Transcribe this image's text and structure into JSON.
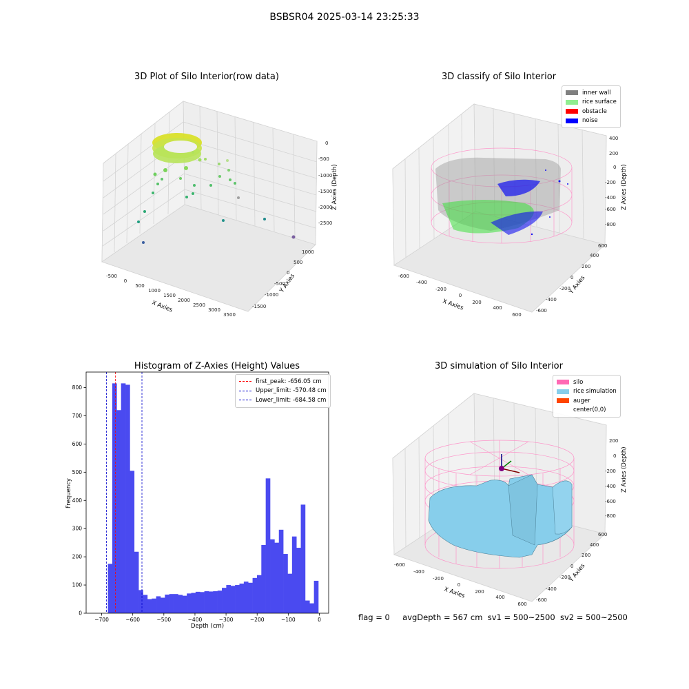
{
  "figure": {
    "suptitle": "BSBSR04 2025-03-14 23:25:33"
  },
  "footer": {
    "flag": "flag = 0",
    "avg_depth": "avgDepth = 567 cm",
    "sv1": "sv1 = 500~2500",
    "sv2": "sv2 = 500~2500"
  },
  "colors": {
    "inner_wall": "#808080",
    "rice_surface": "#90ee90",
    "obstacle": "#ff0000",
    "noise": "#0000ff",
    "silo": "#ff69b4",
    "rice_simulation": "#87ceeb",
    "auger": "#ff4500",
    "hist_bar": "#4a4af0",
    "first_peak": "#ff0000",
    "limit": "#0000cc"
  },
  "chart_data": [
    {
      "type": "scatter3d",
      "title": "3D Plot of Silo Interior(row data)",
      "xlabel": "X Axies",
      "ylabel": "Y Axies",
      "zlabel": "Z Axies (Depth)",
      "xticks": [
        "-500",
        "0",
        "500",
        "1000",
        "1500",
        "2000",
        "2500",
        "3000",
        "3500"
      ],
      "yticks": [
        "-1500",
        "-1000",
        "-500",
        "0",
        "500",
        "1000"
      ],
      "zticks": [
        "-2500",
        "-2000",
        "-1500",
        "-1000",
        "-500",
        "0"
      ]
    },
    {
      "type": "scatter3d",
      "title": "3D classify of Silo Interior",
      "xlabel": "X Axies",
      "ylabel": "Y Axies",
      "zlabel": "Z Axies (Depth)",
      "xticks": [
        "-600",
        "-400",
        "-200",
        "0",
        "200",
        "400",
        "600"
      ],
      "yticks": [
        "-600",
        "-400",
        "-200",
        "0",
        "200",
        "400",
        "600"
      ],
      "zticks": [
        "-800",
        "-600",
        "-400",
        "-200",
        "0",
        "200",
        "400"
      ],
      "legend": [
        "inner wall",
        "rice surface",
        "obstacle",
        "noise"
      ]
    },
    {
      "type": "bar",
      "title": "Histogram of Z-Axies (Height) Values",
      "xlabel": "Depth (cm)",
      "ylabel": "Frequency",
      "xlim": [
        -750,
        30
      ],
      "ylim": [
        0,
        855
      ],
      "xticks": [
        -700,
        -600,
        -500,
        -400,
        -300,
        -200,
        -100,
        0
      ],
      "yticks": [
        0,
        100,
        200,
        300,
        400,
        500,
        600,
        700,
        800
      ],
      "bin_start": -680,
      "bin_width": 14.1,
      "values": [
        175,
        815,
        720,
        815,
        810,
        505,
        218,
        82,
        65,
        50,
        52,
        60,
        55,
        66,
        68,
        68,
        65,
        62,
        70,
        72,
        76,
        75,
        78,
        77,
        78,
        80,
        90,
        100,
        97,
        100,
        105,
        112,
        108,
        125,
        135,
        242,
        478,
        262,
        250,
        296,
        210,
        140,
        272,
        232,
        385,
        45,
        35,
        115
      ],
      "vlines": [
        {
          "label": "first_peak: -656.05 cm",
          "x": -656.05,
          "color": "#ff0000"
        },
        {
          "label": "Upper_limit: -570.48 cm",
          "x": -570.48,
          "color": "#0000cc"
        },
        {
          "label": "Lower_limit: -684.58 cm",
          "x": -684.58,
          "color": "#0000cc"
        }
      ],
      "legend_position": "top-right"
    },
    {
      "type": "surface3d",
      "title": "3D simulation of Silo Interior",
      "xlabel": "X Axies",
      "ylabel": "Y Axies",
      "zlabel": "Z Axies (Depth)",
      "xticks": [
        "-600",
        "-400",
        "-200",
        "0",
        "200",
        "400",
        "600"
      ],
      "yticks": [
        "-600",
        "-400",
        "-200",
        "0",
        "200",
        "400",
        "600"
      ],
      "zticks": [
        "-800",
        "-600",
        "-400",
        "-200",
        "0",
        "200"
      ],
      "legend": [
        "silo",
        "rice simulation",
        "auger",
        "center(0,0)"
      ]
    }
  ]
}
